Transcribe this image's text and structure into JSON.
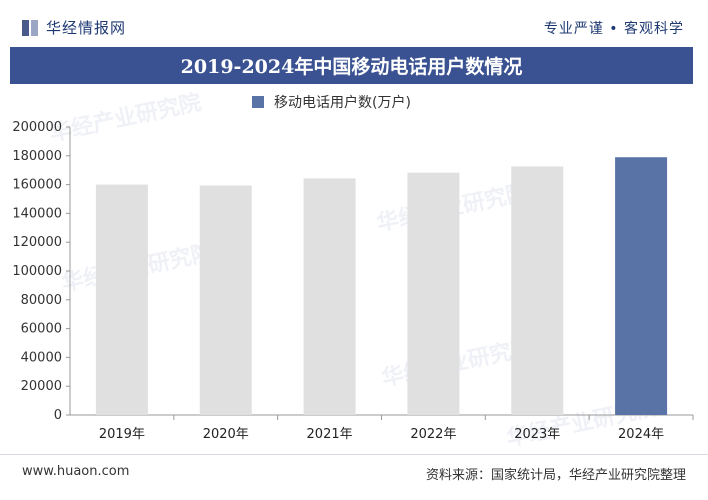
{
  "header": {
    "brand": "华经情报网",
    "slogan": "专业严谨 • 客观科学"
  },
  "chart_data": {
    "type": "bar",
    "title": "2019-2024年中国移动电话用户数情况",
    "categories": [
      "2019年",
      "2020年",
      "2021年",
      "2022年",
      "2023年",
      "2024年"
    ],
    "series": [
      {
        "name": "移动电话用户数(万户)",
        "values": [
          160000,
          159400,
          164300,
          168300,
          172600,
          179000
        ]
      }
    ],
    "ylim": [
      0,
      200000
    ],
    "yticks": [
      0,
      20000,
      40000,
      60000,
      80000,
      100000,
      120000,
      140000,
      160000,
      180000,
      200000
    ],
    "grid": false,
    "legend": "top-center",
    "colors": {
      "bar": "#e0e0e0",
      "highlight": "#5a73a6"
    },
    "highlight_index": 5
  },
  "footer": {
    "site": "www.huaon.com",
    "source": "资料来源：国家统计局，华经产业研究院整理"
  },
  "watermarks": [
    "华经产业研究院",
    "华经产业研究院",
    "华经产业研究院",
    "华经产业研究院",
    "华经产业研究院"
  ]
}
